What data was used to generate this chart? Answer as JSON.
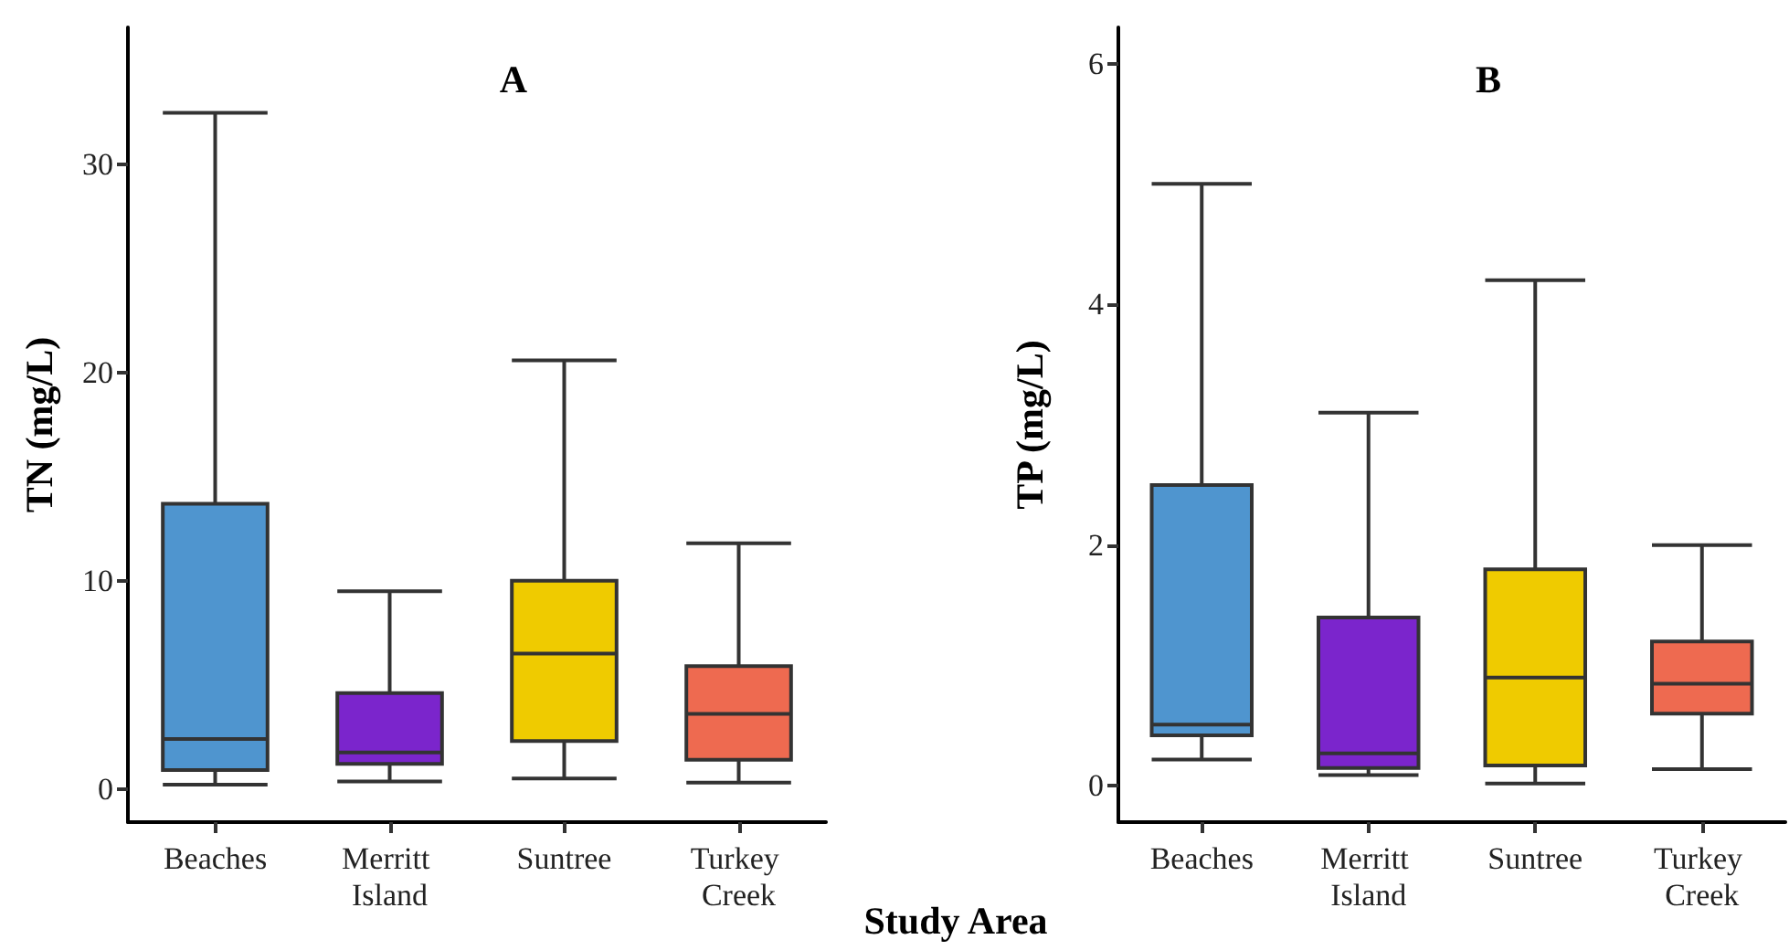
{
  "chart_data": [
    {
      "type": "box",
      "title": "A",
      "xlabel": "Study Area",
      "ylabel": "TN (mg/L)",
      "categories": [
        "Beaches",
        "Merritt Island",
        "Suntree",
        "Turkey Creek"
      ],
      "colors": [
        "#4f95cf",
        "#7b25cc",
        "#efcb00",
        "#ee6a50"
      ],
      "ylim": [
        -1.6,
        36.6
      ],
      "yticks": [
        0,
        10,
        20,
        30
      ],
      "boxes": [
        {
          "low": 0.2,
          "q1": 0.9,
          "median": 2.4,
          "q3": 13.7,
          "high": 32.5
        },
        {
          "low": 0.35,
          "q1": 1.2,
          "median": 1.75,
          "q3": 4.6,
          "high": 9.5
        },
        {
          "low": 0.5,
          "q1": 2.3,
          "median": 6.5,
          "q3": 10.0,
          "high": 20.6
        },
        {
          "low": 0.3,
          "q1": 1.4,
          "median": 3.6,
          "q3": 5.9,
          "high": 11.8
        }
      ]
    },
    {
      "type": "box",
      "title": "B",
      "ylabel": "TP (mg/L)",
      "categories": [
        "Beaches",
        "Merritt Island",
        "Suntree",
        "Turkey Creek"
      ],
      "colors": [
        "#4f95cf",
        "#7b25cc",
        "#efcb00",
        "#ee6a50"
      ],
      "ylim": [
        -0.3,
        6.3
      ],
      "yticks": [
        0,
        2,
        4,
        6
      ],
      "boxes": [
        {
          "low": 0.22,
          "q1": 0.42,
          "median": 0.51,
          "q3": 2.5,
          "high": 5.0
        },
        {
          "low": 0.09,
          "q1": 0.15,
          "median": 0.27,
          "q3": 1.4,
          "high": 3.1
        },
        {
          "low": 0.02,
          "q1": 0.17,
          "median": 0.9,
          "q3": 1.8,
          "high": 4.2
        },
        {
          "low": 0.14,
          "q1": 0.6,
          "median": 0.85,
          "q3": 1.2,
          "high": 2.0
        }
      ]
    }
  ]
}
